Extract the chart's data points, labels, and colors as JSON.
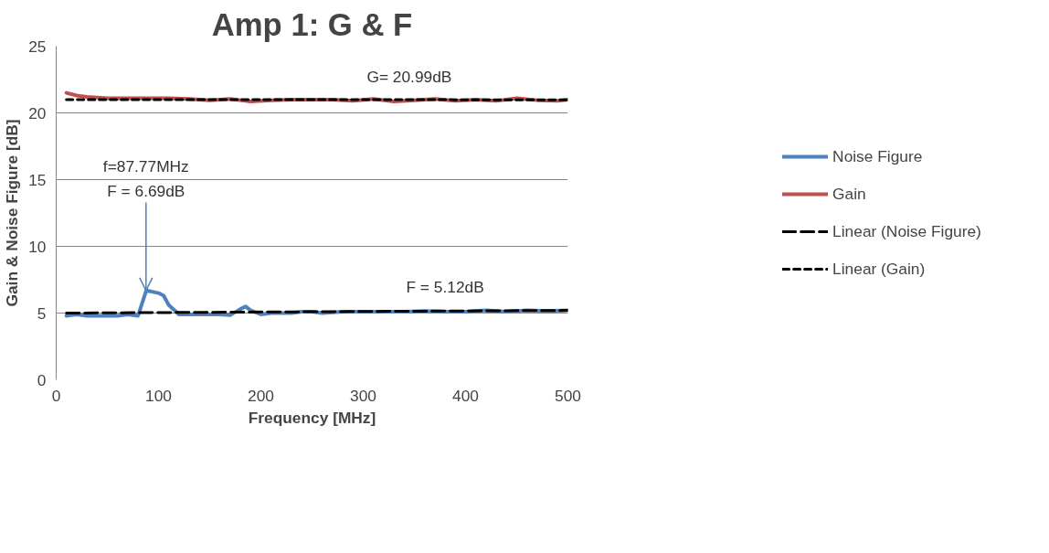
{
  "chart_data": {
    "type": "line",
    "title": "Amp 1: G & F",
    "xlabel": "Frequency [MHz]",
    "ylabel": "Gain & Noise Figure [dB]",
    "xlim": [
      0,
      500
    ],
    "xticks": [
      0,
      100,
      200,
      300,
      400,
      500
    ],
    "ylim": [
      0,
      25
    ],
    "yticks": [
      0,
      5,
      10,
      15,
      20,
      25
    ],
    "grid": "y",
    "legend": "right",
    "series": [
      {
        "name": "Noise Figure",
        "color": "#4f81bd",
        "line_style": "solid",
        "x": [
          10,
          20,
          30,
          40,
          50,
          60,
          70,
          80,
          88,
          100,
          105,
          110,
          120,
          130,
          140,
          150,
          160,
          170,
          180,
          185,
          190,
          200,
          210,
          220,
          230,
          240,
          250,
          260,
          280,
          300,
          320,
          340,
          360,
          380,
          400,
          420,
          440,
          460,
          480,
          500
        ],
        "values": [
          4.8,
          4.9,
          4.8,
          4.8,
          4.8,
          4.8,
          4.9,
          4.8,
          6.69,
          6.5,
          6.3,
          5.6,
          4.9,
          4.9,
          4.9,
          4.9,
          4.9,
          4.85,
          5.3,
          5.5,
          5.2,
          4.9,
          5.0,
          5.0,
          5.0,
          5.1,
          5.1,
          5.0,
          5.1,
          5.1,
          5.1,
          5.1,
          5.15,
          5.1,
          5.1,
          5.2,
          5.1,
          5.2,
          5.15,
          5.2
        ]
      },
      {
        "name": "Gain",
        "color": "#c0504d",
        "line_style": "solid",
        "x": [
          10,
          20,
          30,
          50,
          70,
          90,
          110,
          130,
          150,
          170,
          190,
          210,
          230,
          250,
          270,
          290,
          310,
          330,
          350,
          370,
          390,
          410,
          430,
          450,
          470,
          490,
          500
        ],
        "values": [
          21.5,
          21.3,
          21.2,
          21.1,
          21.1,
          21.1,
          21.1,
          21.05,
          20.95,
          21.05,
          20.85,
          20.95,
          21.0,
          21.0,
          21.0,
          20.9,
          21.05,
          20.85,
          20.95,
          21.05,
          20.9,
          21.0,
          20.9,
          21.1,
          20.95,
          20.9,
          21.0
        ]
      },
      {
        "name": "Linear (Noise Figure)",
        "color": "#000000",
        "line_style": "dashed",
        "x": [
          10,
          500
        ],
        "values": [
          5.0,
          5.2
        ]
      },
      {
        "name": "Linear (Gain)",
        "color": "#000000",
        "line_style": "dotted",
        "x": [
          10,
          500
        ],
        "values": [
          21.0,
          20.98
        ]
      }
    ],
    "annotations": [
      "G= 20.99dB",
      "F = 5.12dB",
      {
        "text": "f=87.77MHz\nF = 6.69dB",
        "x": 87.77,
        "y": 6.69
      }
    ]
  }
}
